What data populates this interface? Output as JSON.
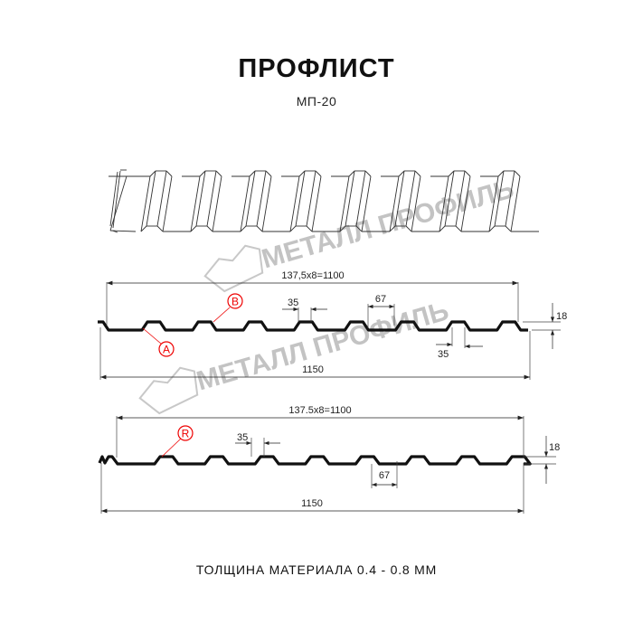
{
  "title": "ПРОФЛИСТ",
  "subtitle": "МП-20",
  "footer": "ТОЛЩИНА МАТЕРИАЛА 0.4 - 0.8 ММ",
  "watermark": "МЕТАЛЛ ПРОФИЛЬ",
  "accent_color": "#e00000",
  "profile_1": {
    "pitch_label": "137,5x8=1100",
    "total_label": "1150",
    "crest_width_label": "35",
    "crest_width_label_2": "35",
    "valley_label": "67",
    "height_label": "18",
    "markers": [
      "B",
      "A"
    ]
  },
  "profile_2": {
    "pitch_label": "137.5x8=1100",
    "total_label": "1150",
    "crest_width_label": "35",
    "valley_label": "67",
    "height_label": "18",
    "markers": [
      "R"
    ]
  }
}
